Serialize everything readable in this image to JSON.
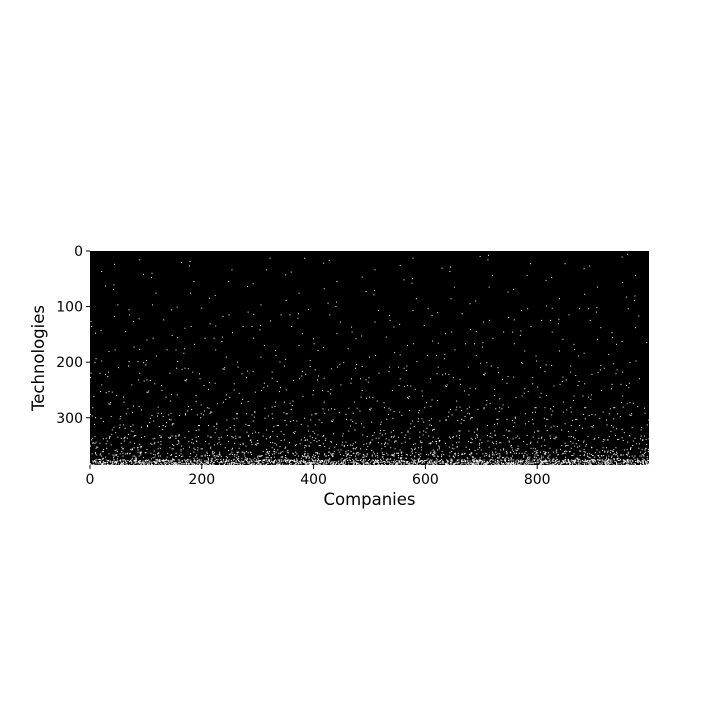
{
  "chart_data": {
    "type": "heatmap",
    "title": "",
    "xlabel": "Companies",
    "ylabel": "Technologies",
    "xlim": [
      0,
      1000
    ],
    "ylim": [
      385,
      0
    ],
    "x_ticks": [
      0,
      200,
      400,
      600,
      800
    ],
    "y_ticks": [
      0,
      100,
      200,
      300
    ],
    "background_color": "#000000",
    "point_color": "#ffffff",
    "grid": false,
    "description_of_values": "binary sparse matrix: white = technology used by company",
    "density_profile": [
      {
        "row_from": 0,
        "row_to": 100,
        "density": 0.0006
      },
      {
        "row_from": 100,
        "row_to": 200,
        "density": 0.0012
      },
      {
        "row_from": 200,
        "row_to": 280,
        "density": 0.003
      },
      {
        "row_from": 280,
        "row_to": 330,
        "density": 0.007
      },
      {
        "row_from": 330,
        "row_to": 360,
        "density": 0.015
      },
      {
        "row_from": 360,
        "row_to": 375,
        "density": 0.035
      },
      {
        "row_from": 375,
        "row_to": 385,
        "density": 0.14
      }
    ]
  }
}
